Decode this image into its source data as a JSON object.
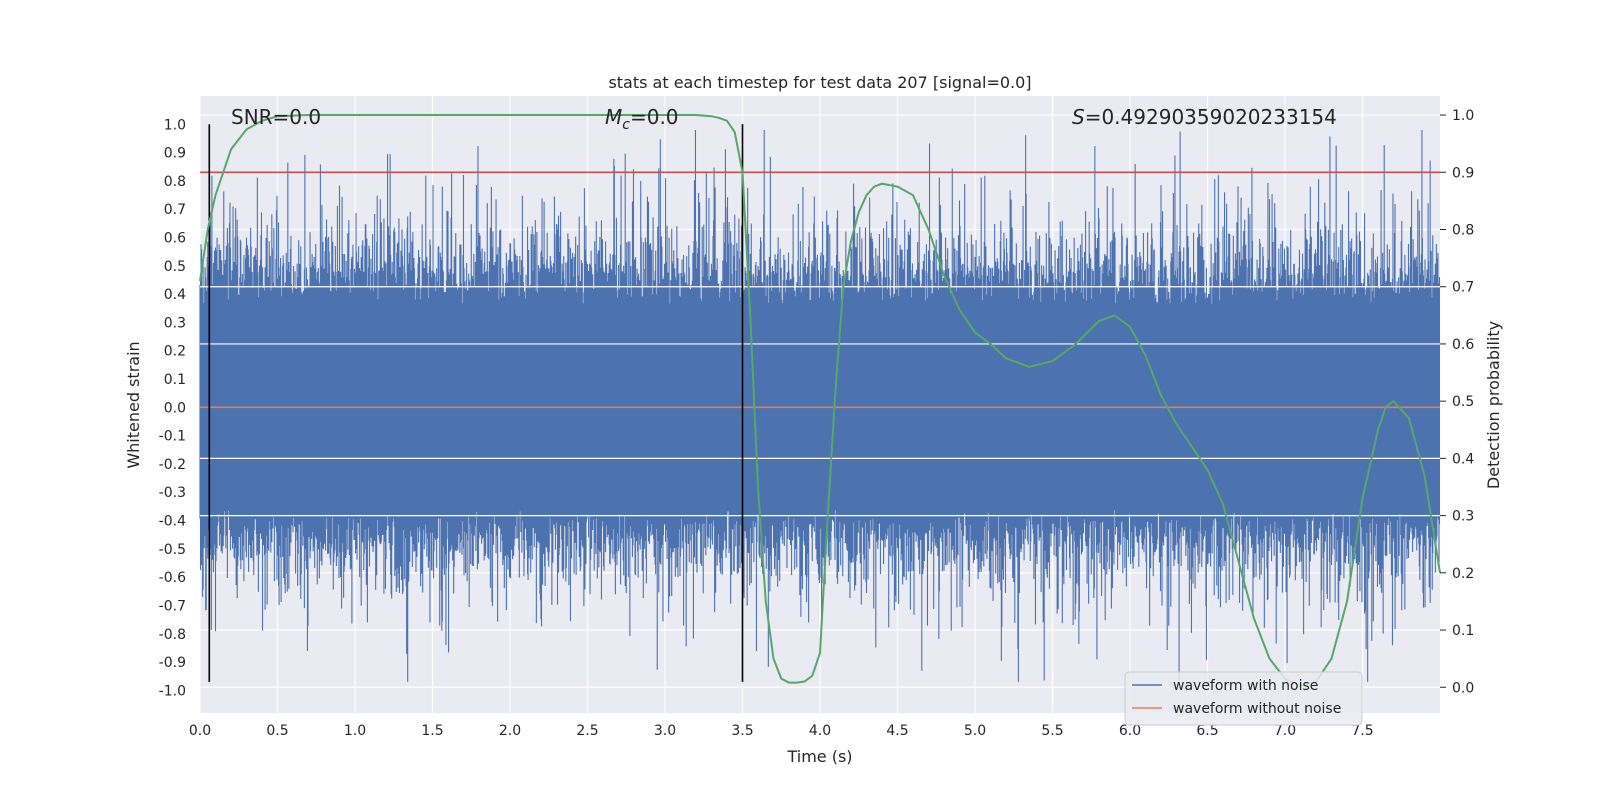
{
  "chart_data": {
    "type": "line",
    "title": "stats at each timestep for test data 207 [signal=0.0]",
    "xlabel": "Time (s)",
    "ylabel": "Whitened strain",
    "y2label": "Detection probability",
    "xlim": [
      0.0,
      8.0
    ],
    "ylim": [
      -1.08,
      1.1
    ],
    "y2lim": [
      -0.045,
      1.0333
    ],
    "x_ticks": [
      "0.0",
      "0.5",
      "1.0",
      "1.5",
      "2.0",
      "2.5",
      "3.0",
      "3.5",
      "4.0",
      "4.5",
      "5.0",
      "5.5",
      "6.0",
      "6.5",
      "7.0",
      "7.5"
    ],
    "y_ticks": [
      "1.0",
      "0.9",
      "0.8",
      "0.7",
      "0.6",
      "0.5",
      "0.4",
      "0.3",
      "0.2",
      "0.1",
      "0.0",
      "-0.1",
      "-0.2",
      "-0.3",
      "-0.4",
      "-0.5",
      "-0.6",
      "-0.7",
      "-0.8",
      "-0.9",
      "-1.0"
    ],
    "y2_ticks": [
      "1.0",
      "0.9",
      "0.8",
      "0.7",
      "0.6",
      "0.5",
      "0.4",
      "0.3",
      "0.2",
      "0.1",
      "0.0"
    ],
    "grid": true,
    "legend_position": "bottom-right",
    "annotations": {
      "snr": "SNR=0.0",
      "mc_symbol": "M",
      "mc_subscript": "c",
      "mc_value": "=0.0",
      "s_symbol": "S",
      "s_value": "=0.49290359020233154"
    },
    "vlines_x": [
      0.06,
      3.5
    ],
    "vlines_y": [
      -0.97,
      1.0
    ],
    "threshold": {
      "y2": 0.9,
      "color": "#c44e52"
    },
    "series": [
      {
        "name": "waveform with noise",
        "color": "#4c72b0",
        "kind": "noise",
        "seed": 207,
        "n": 2400
      },
      {
        "name": "waveform without noise",
        "color": "#dd8452",
        "kind": "flat",
        "value": 0.0
      },
      {
        "color": "#55a868",
        "axis": "right",
        "x": [
          0.0,
          0.05,
          0.1,
          0.15,
          0.2,
          0.3,
          0.4,
          0.5,
          0.7,
          1.0,
          1.5,
          2.0,
          2.5,
          3.0,
          3.2,
          3.3,
          3.35,
          3.4,
          3.45,
          3.5,
          3.55,
          3.6,
          3.65,
          3.7,
          3.75,
          3.8,
          3.85,
          3.9,
          3.95,
          4.0,
          4.05,
          4.1,
          4.15,
          4.2,
          4.25,
          4.3,
          4.35,
          4.4,
          4.5,
          4.6,
          4.7,
          4.8,
          4.9,
          5.0,
          5.1,
          5.2,
          5.35,
          5.5,
          5.65,
          5.8,
          5.9,
          6.0,
          6.1,
          6.2,
          6.3,
          6.4,
          6.5,
          6.6,
          6.7,
          6.8,
          6.9,
          7.0,
          7.1,
          7.15,
          7.2,
          7.3,
          7.4,
          7.5,
          7.6,
          7.65,
          7.7,
          7.8,
          7.9,
          8.0
        ],
        "values": [
          0.71,
          0.8,
          0.86,
          0.9,
          0.94,
          0.975,
          0.99,
          0.998,
          1.0,
          1.0,
          1.0,
          1.0,
          1.0,
          1.0,
          1.0,
          0.998,
          0.995,
          0.99,
          0.97,
          0.9,
          0.65,
          0.35,
          0.15,
          0.05,
          0.015,
          0.008,
          0.008,
          0.01,
          0.02,
          0.06,
          0.3,
          0.52,
          0.7,
          0.78,
          0.83,
          0.86,
          0.875,
          0.88,
          0.875,
          0.86,
          0.8,
          0.72,
          0.66,
          0.62,
          0.6,
          0.575,
          0.56,
          0.57,
          0.6,
          0.64,
          0.65,
          0.63,
          0.58,
          0.51,
          0.46,
          0.42,
          0.38,
          0.32,
          0.22,
          0.12,
          0.05,
          0.015,
          0.002,
          0.005,
          0.01,
          0.05,
          0.15,
          0.33,
          0.45,
          0.49,
          0.5,
          0.47,
          0.37,
          0.2
        ]
      }
    ]
  }
}
